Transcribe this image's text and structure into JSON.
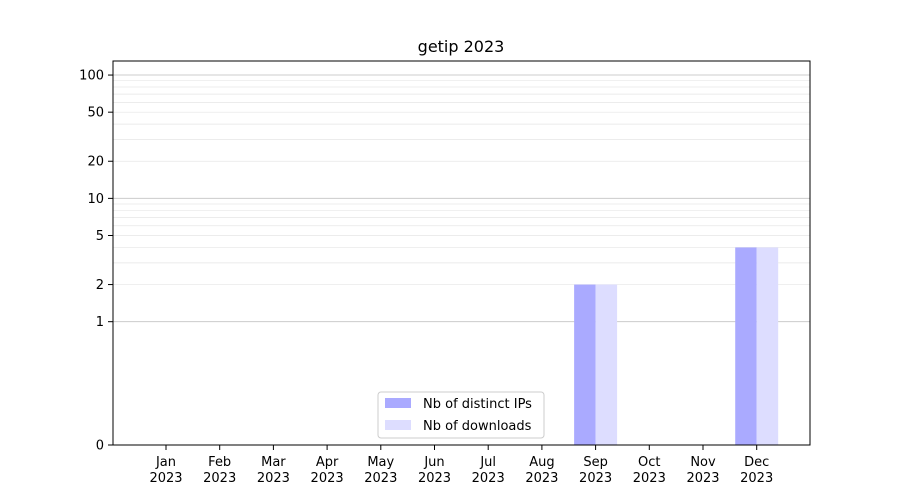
{
  "chart_data": {
    "type": "bar",
    "title": "getip 2023",
    "xlabel": "",
    "ylabel": "",
    "y_scale": "symlog",
    "ylim": [
      0,
      130
    ],
    "y_ticks": [
      0,
      1,
      2,
      5,
      10,
      20,
      50,
      100
    ],
    "categories": [
      {
        "month": "Jan",
        "year": "2023"
      },
      {
        "month": "Feb",
        "year": "2023"
      },
      {
        "month": "Mar",
        "year": "2023"
      },
      {
        "month": "Apr",
        "year": "2023"
      },
      {
        "month": "May",
        "year": "2023"
      },
      {
        "month": "Jun",
        "year": "2023"
      },
      {
        "month": "Jul",
        "year": "2023"
      },
      {
        "month": "Aug",
        "year": "2023"
      },
      {
        "month": "Sep",
        "year": "2023"
      },
      {
        "month": "Oct",
        "year": "2023"
      },
      {
        "month": "Nov",
        "year": "2023"
      },
      {
        "month": "Dec",
        "year": "2023"
      }
    ],
    "series": [
      {
        "name": "Nb of distinct IPs",
        "color": "#aaaaff",
        "values": [
          0,
          0,
          0,
          0,
          0,
          0,
          0,
          0,
          2,
          0,
          0,
          4
        ]
      },
      {
        "name": "Nb of downloads",
        "color": "#ddddff",
        "values": [
          0,
          0,
          0,
          0,
          0,
          0,
          0,
          0,
          2,
          0,
          0,
          4
        ]
      }
    ],
    "grid": true,
    "legend_position": "bottom-center"
  }
}
